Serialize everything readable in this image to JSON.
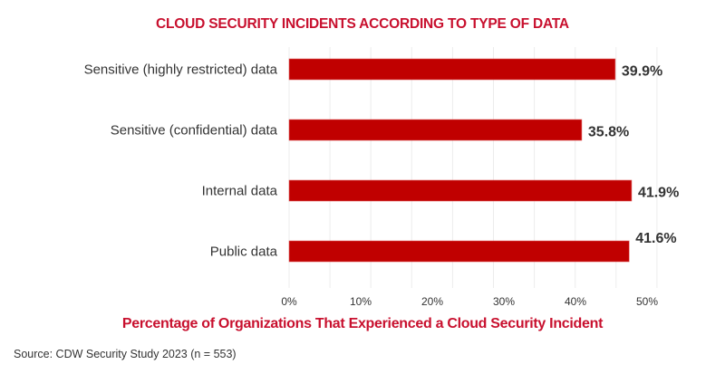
{
  "chart_data": {
    "type": "bar",
    "orientation": "horizontal",
    "title": "CLOUD SECURITY INCIDENTS ACCORDING TO TYPE OF DATA",
    "xlabel": "Percentage of Organizations That Experienced a Cloud Security Incident",
    "ylabel": "",
    "categories": [
      "Sensitive (highly restricted) data",
      "Sensitive (confidential) data",
      "Internal data",
      "Public data"
    ],
    "values": [
      39.9,
      35.8,
      41.9,
      41.6
    ],
    "value_labels": [
      "39.9%",
      "35.8%",
      "41.9%",
      "41.6%"
    ],
    "xlim": [
      0,
      50
    ],
    "xticks": [
      "0%",
      "10%",
      "20%",
      "30%",
      "40%",
      "50%"
    ],
    "grid": true,
    "bar_color": "#c00000",
    "title_color": "#c8102e",
    "source": "Source: CDW Security Study 2023 (n = 553)"
  }
}
